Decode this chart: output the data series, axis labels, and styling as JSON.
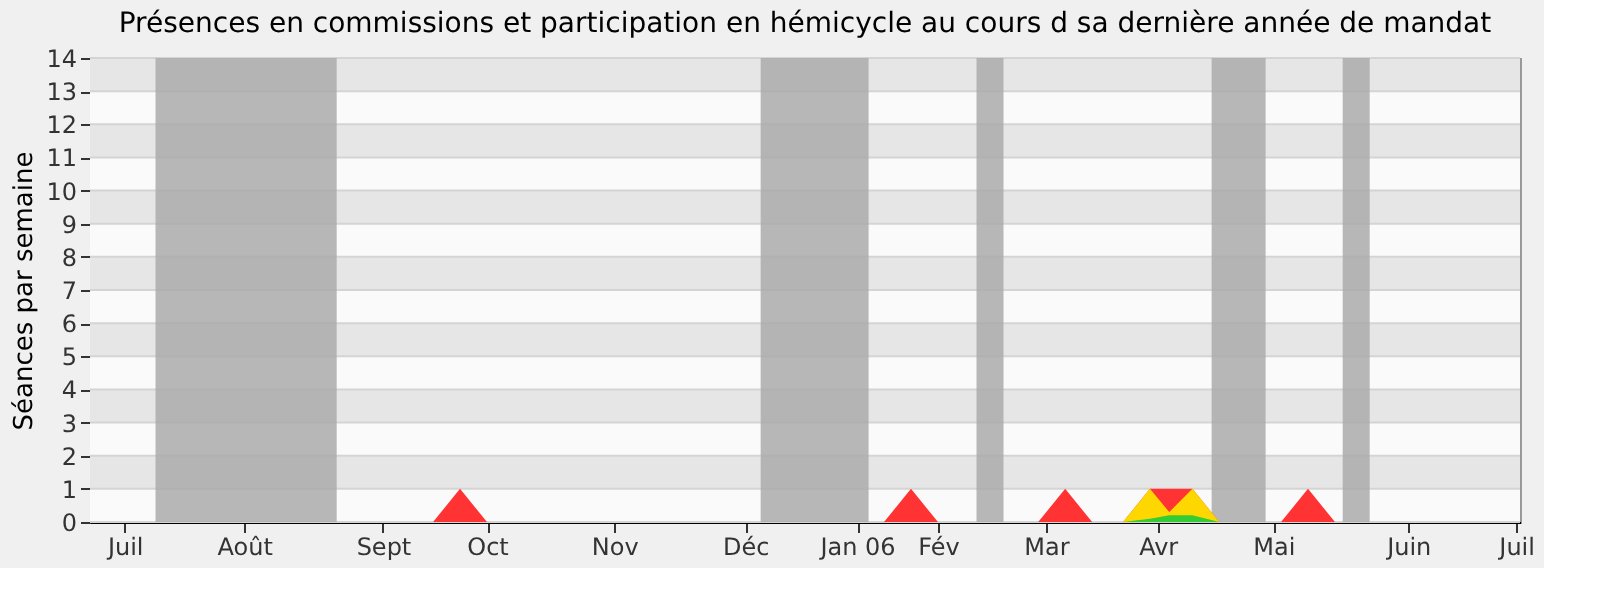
{
  "chart_data": {
    "type": "area",
    "title": "Présences en commissions et participation en hémicycle au cours d sa dernière année de mandat",
    "ylabel": "Séances par semaine",
    "xlim": [
      "2005-06-27",
      "2006-07-03"
    ],
    "xticks": [
      {
        "value": "2005-07-06",
        "label": "Juil"
      },
      {
        "value": "2005-08-06",
        "label": "Août"
      },
      {
        "value": "2005-09-11",
        "label": "Sept"
      },
      {
        "value": "2005-10-08",
        "label": "Oct"
      },
      {
        "value": "2005-11-10",
        "label": "Nov"
      },
      {
        "value": "2005-12-14",
        "label": "Déc"
      },
      {
        "value": "2006-01-12",
        "label": "Jan 06"
      },
      {
        "value": "2006-02-02",
        "label": "Fév"
      },
      {
        "value": "2006-03-02",
        "label": "Mar"
      },
      {
        "value": "2006-03-31",
        "label": "Avr"
      },
      {
        "value": "2006-04-30",
        "label": "Mai"
      },
      {
        "value": "2006-06-04",
        "label": "Juin"
      },
      {
        "value": "2006-07-02",
        "label": "Juil"
      }
    ],
    "ylim": [
      0,
      14
    ],
    "yticks": [
      0,
      1,
      2,
      3,
      4,
      5,
      6,
      7,
      8,
      9,
      10,
      11,
      12,
      13,
      14
    ],
    "grid": "y",
    "bands": [
      {
        "axis": "x",
        "from": "2005-07-14",
        "to": "2005-08-30",
        "color": "#aaaaaa"
      },
      {
        "axis": "x",
        "from": "2005-12-18",
        "to": "2006-01-15",
        "color": "#aaaaaa"
      },
      {
        "axis": "x",
        "from": "2006-02-12",
        "to": "2006-02-19",
        "color": "#aaaaaa"
      },
      {
        "axis": "x",
        "from": "2006-04-14",
        "to": "2006-04-28",
        "color": "#aaaaaa"
      },
      {
        "axis": "x",
        "from": "2006-05-18",
        "to": "2006-05-25",
        "color": "#aaaaaa"
      }
    ],
    "series": [
      {
        "color": "#ff3333",
        "x": [
          "2005-06-27",
          "2005-09-24",
          "2005-10-01",
          "2005-10-08",
          "2006-01-19",
          "2006-01-26",
          "2006-02-02",
          "2006-02-28",
          "2006-03-07",
          "2006-03-14",
          "2006-03-22",
          "2006-03-29",
          "2006-04-09",
          "2006-04-16",
          "2006-05-02",
          "2006-05-09",
          "2006-05-16",
          "2006-07-03"
        ],
        "values": [
          0,
          0,
          1,
          0,
          0,
          1,
          0,
          0,
          1,
          0,
          0,
          1,
          1,
          0,
          0,
          1,
          0,
          0
        ]
      },
      {
        "color": "#ffd700",
        "x": [
          "2006-03-22",
          "2006-03-29",
          "2006-04-03",
          "2006-04-09",
          "2006-04-16"
        ],
        "values": [
          0,
          1,
          0.3,
          1,
          0
        ]
      },
      {
        "color": "#33cc33",
        "x": [
          "2006-03-22",
          "2006-03-29",
          "2006-04-03",
          "2006-04-09",
          "2006-04-16"
        ],
        "values": [
          0,
          0.1,
          0.2,
          0.2,
          0
        ]
      }
    ]
  }
}
